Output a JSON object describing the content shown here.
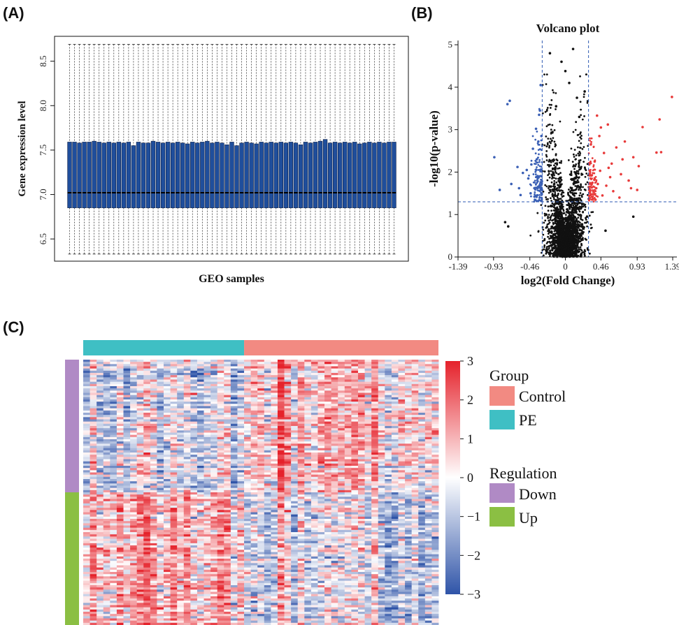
{
  "panels": {
    "a": "(A)",
    "b": "(B)",
    "c": "(C)"
  },
  "chart_data": [
    {
      "type": "box",
      "panel": "(A)",
      "xlabel": "GEO samples",
      "ylabel": "Gene expression level",
      "yticks": [
        "6.5",
        "7.0",
        "7.5",
        "8.0",
        "8.5"
      ],
      "ylim": [
        6.25,
        8.78
      ],
      "n_samples": 67,
      "box_color": "#1f4e9c",
      "summary": {
        "whisker_low": 6.33,
        "q1": 6.85,
        "median": 7.02,
        "q3": 7.59,
        "whisker_high": 8.69
      },
      "q3_values": [
        7.59,
        7.59,
        7.58,
        7.59,
        7.59,
        7.6,
        7.59,
        7.58,
        7.59,
        7.58,
        7.59,
        7.58,
        7.59,
        7.55,
        7.59,
        7.58,
        7.58,
        7.6,
        7.59,
        7.58,
        7.59,
        7.58,
        7.59,
        7.58,
        7.57,
        7.59,
        7.58,
        7.59,
        7.6,
        7.58,
        7.59,
        7.58,
        7.56,
        7.59,
        7.55,
        7.58,
        7.59,
        7.58,
        7.57,
        7.59,
        7.58,
        7.59,
        7.58,
        7.59,
        7.58,
        7.59,
        7.58,
        7.56,
        7.59,
        7.58,
        7.59,
        7.6,
        7.62,
        7.58,
        7.59,
        7.58,
        7.59,
        7.58,
        7.59,
        7.57,
        7.58,
        7.59,
        7.58,
        7.59,
        7.58,
        7.59,
        7.59
      ]
    },
    {
      "type": "scatter",
      "panel": "(B)",
      "title": "Volcano plot",
      "xlabel": "log2(Fold Change)",
      "ylabel": "-log10(p-value)",
      "xticks": [
        "-1.39",
        "-0.93",
        "-0.46",
        "0",
        "0.46",
        "0.93",
        "1.39"
      ],
      "yticks": [
        "0",
        "1",
        "2",
        "3",
        "4",
        "5"
      ],
      "xlim": [
        -1.39,
        1.39
      ],
      "ylim": [
        0,
        5.1
      ],
      "thresholds": {
        "log2fc": [
          -0.3,
          0.3
        ],
        "neg_log10_p": 1.3
      },
      "colors": {
        "down": "#3a5fb5",
        "up": "#e83a3a",
        "ns": "#111111",
        "threshold": "#2e5ab3"
      },
      "series": [
        {
          "color": "#e83a3a",
          "points": [
            [
              1.38,
              3.77
            ],
            [
              1.22,
              3.24
            ],
            [
              1.18,
              2.46
            ],
            [
              1.24,
              2.47
            ],
            [
              1.0,
              3.06
            ],
            [
              0.93,
              1.58
            ],
            [
              0.95,
              2.14
            ],
            [
              0.77,
              2.72
            ],
            [
              0.55,
              3.12
            ],
            [
              0.41,
              3.33
            ],
            [
              0.6,
              2.2
            ],
            [
              0.66,
              2.58
            ],
            [
              0.72,
              1.95
            ],
            [
              0.58,
              1.88
            ],
            [
              0.5,
              2.45
            ],
            [
              0.45,
              2.03
            ],
            [
              0.4,
              1.62
            ],
            [
              0.35,
              1.75
            ],
            [
              0.38,
              2.25
            ],
            [
              0.48,
              1.45
            ],
            [
              0.53,
              1.68
            ],
            [
              0.62,
              1.55
            ],
            [
              0.82,
              1.8
            ],
            [
              0.88,
              2.35
            ],
            [
              0.7,
              1.4
            ],
            [
              0.36,
              1.48
            ],
            [
              0.44,
              2.85
            ],
            [
              0.33,
              2.65
            ],
            [
              0.31,
              2.18
            ],
            [
              0.39,
              1.35
            ],
            [
              0.46,
              3.05
            ],
            [
              0.56,
              2.1
            ],
            [
              0.74,
              2.3
            ],
            [
              0.85,
              1.62
            ],
            [
              0.34,
              1.92
            ],
            [
              0.42,
              1.72
            ]
          ]
        },
        {
          "color": "#3a5fb5",
          "points": [
            [
              -0.72,
              3.68
            ],
            [
              -0.75,
              3.6
            ],
            [
              -0.92,
              2.35
            ],
            [
              -0.85,
              1.58
            ],
            [
              -0.7,
              1.72
            ],
            [
              -0.62,
              2.12
            ],
            [
              -0.55,
              1.98
            ],
            [
              -0.48,
              1.85
            ],
            [
              -0.42,
              2.55
            ],
            [
              -0.38,
              3.02
            ],
            [
              -0.35,
              2.72
            ],
            [
              -0.33,
              3.45
            ],
            [
              -0.32,
              4.05
            ],
            [
              -0.45,
              1.5
            ],
            [
              -0.6,
              1.62
            ],
            [
              -0.36,
              1.62
            ],
            [
              -0.4,
              1.42
            ],
            [
              -0.37,
              2.3
            ],
            [
              -0.31,
              1.9
            ],
            [
              -0.34,
              3.35
            ],
            [
              -0.5,
              2.05
            ],
            [
              -0.58,
              1.46
            ],
            [
              -0.31,
              2.85
            ],
            [
              -0.44,
              2.18
            ]
          ]
        },
        {
          "color": "#111111",
          "points": [
            [
              0,
              4.38
            ],
            [
              0.1,
              4.9
            ],
            [
              0.05,
              4.1
            ],
            [
              -0.12,
              3.55
            ],
            [
              0.25,
              3.9
            ],
            [
              0.28,
              0.95
            ],
            [
              0.88,
              0.95
            ],
            [
              0.52,
              0.62
            ],
            [
              -0.78,
              0.82
            ],
            [
              -0.74,
              0.72
            ],
            [
              0.18,
              3.3
            ],
            [
              -0.2,
              4.8
            ],
            [
              -0.05,
              4.6
            ],
            [
              0.15,
              3.75
            ]
          ]
        }
      ]
    },
    {
      "type": "heatmap",
      "panel": "(C)",
      "groups": [
        {
          "name": "PE",
          "count": 24,
          "color": "#3fbfc4"
        },
        {
          "name": "Control",
          "count": 29,
          "color": "#f28a82"
        }
      ],
      "regulation": [
        {
          "name": "Down",
          "rows": 60,
          "color": "#b08ac5"
        },
        {
          "name": "Up",
          "rows": 60,
          "color": "#8bbf43"
        }
      ],
      "colorbar": {
        "ticks": [
          "3",
          "2",
          "1",
          "0",
          "−1",
          "−2",
          "−3"
        ],
        "min": -3,
        "max": 3,
        "low": "#2f54a8",
        "mid": "#ffffff",
        "high": "#e5222b"
      },
      "legend": {
        "group_title": "Group",
        "group_items": [
          {
            "label": "Control",
            "color": "#f28a82"
          },
          {
            "label": "PE",
            "color": "#3fbfc4"
          }
        ],
        "regulation_title": "Regulation",
        "regulation_items": [
          {
            "label": "Down",
            "color": "#b08ac5"
          },
          {
            "label": "Up",
            "color": "#8bbf43"
          }
        ]
      }
    }
  ]
}
